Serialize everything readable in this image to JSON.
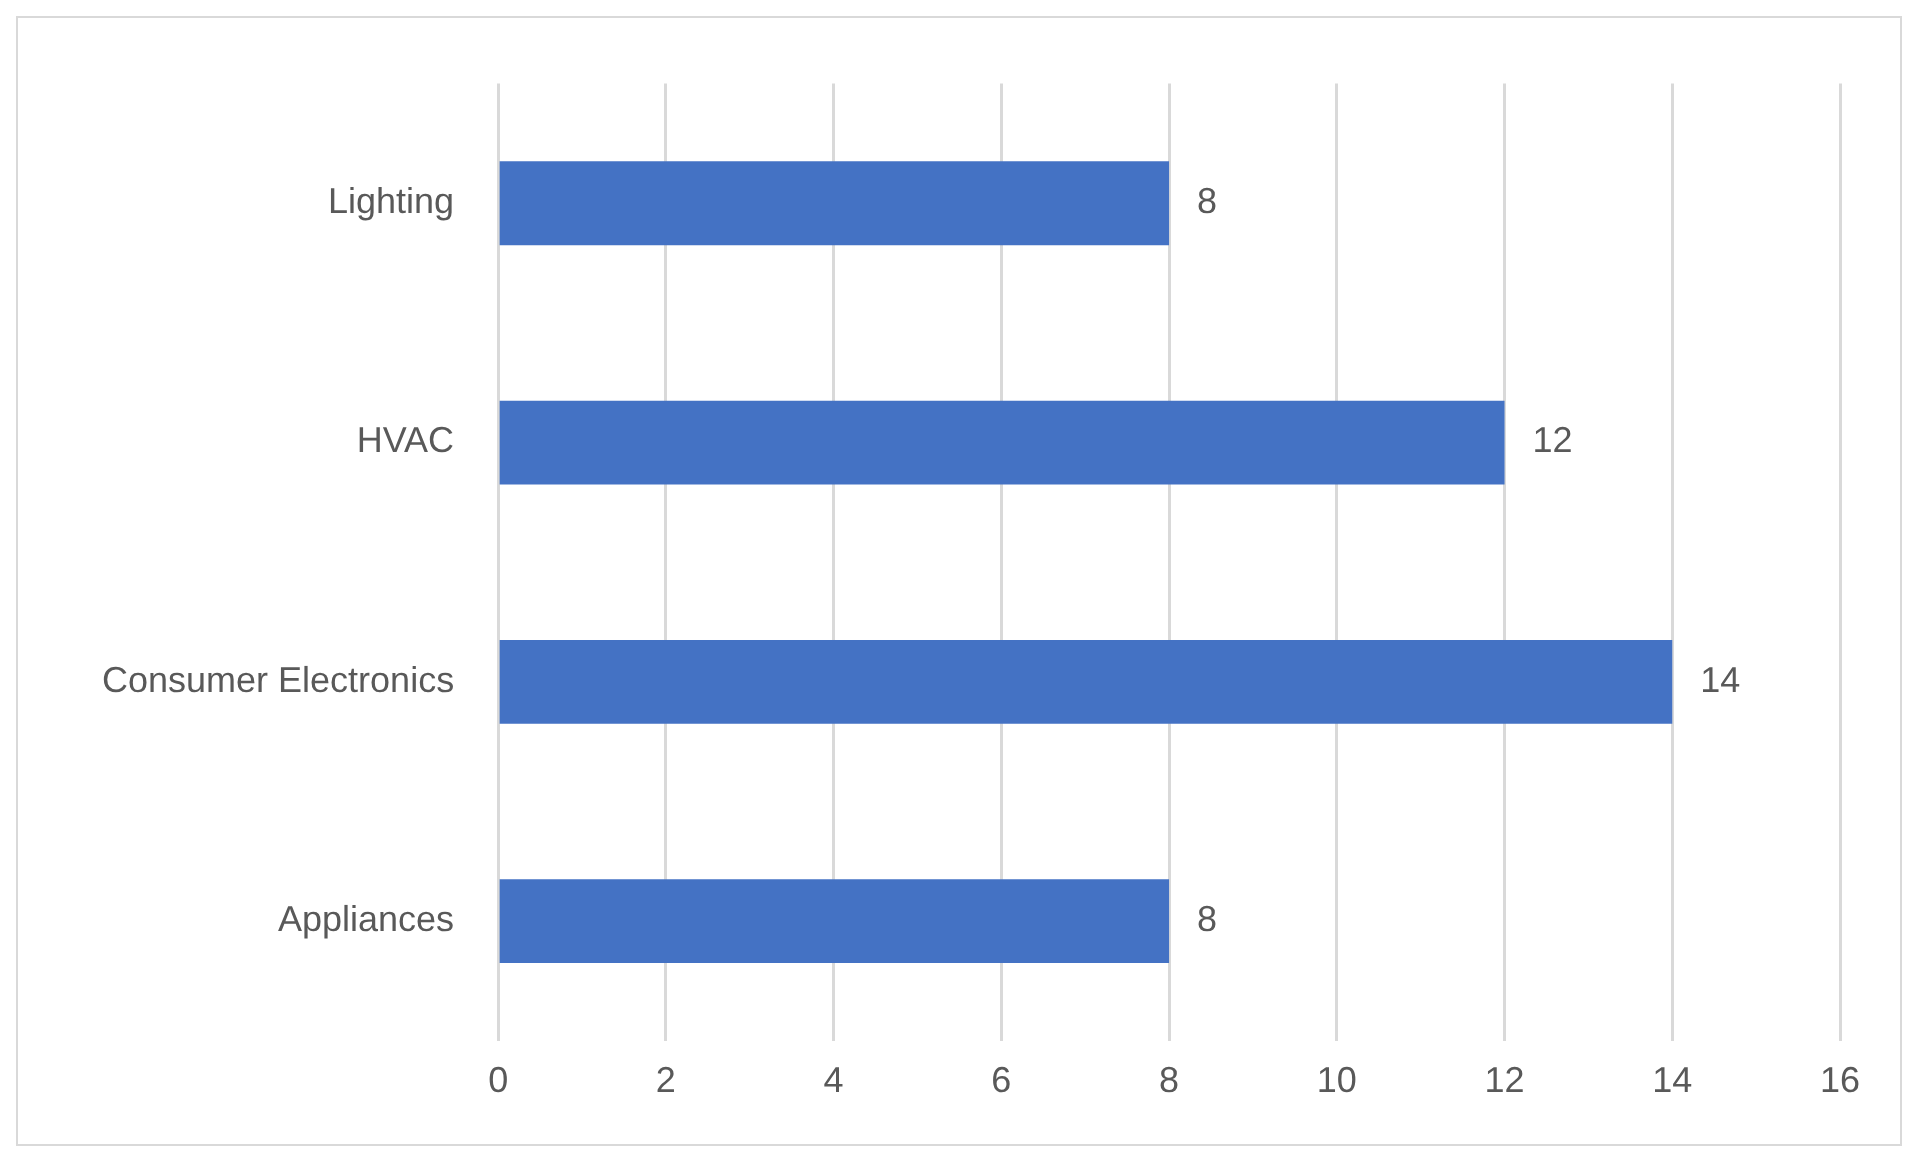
{
  "chart_data": {
    "type": "bar",
    "orientation": "horizontal",
    "categories": [
      "Lighting",
      "HVAC",
      "Consumer Electronics",
      "Appliances"
    ],
    "values": [
      8,
      12,
      14,
      8
    ],
    "color": "#4472c4",
    "xlim": [
      0,
      16
    ],
    "xticks": [
      0,
      2,
      4,
      6,
      8,
      10,
      12,
      14,
      16
    ],
    "grid": "x",
    "data_labels": true
  }
}
